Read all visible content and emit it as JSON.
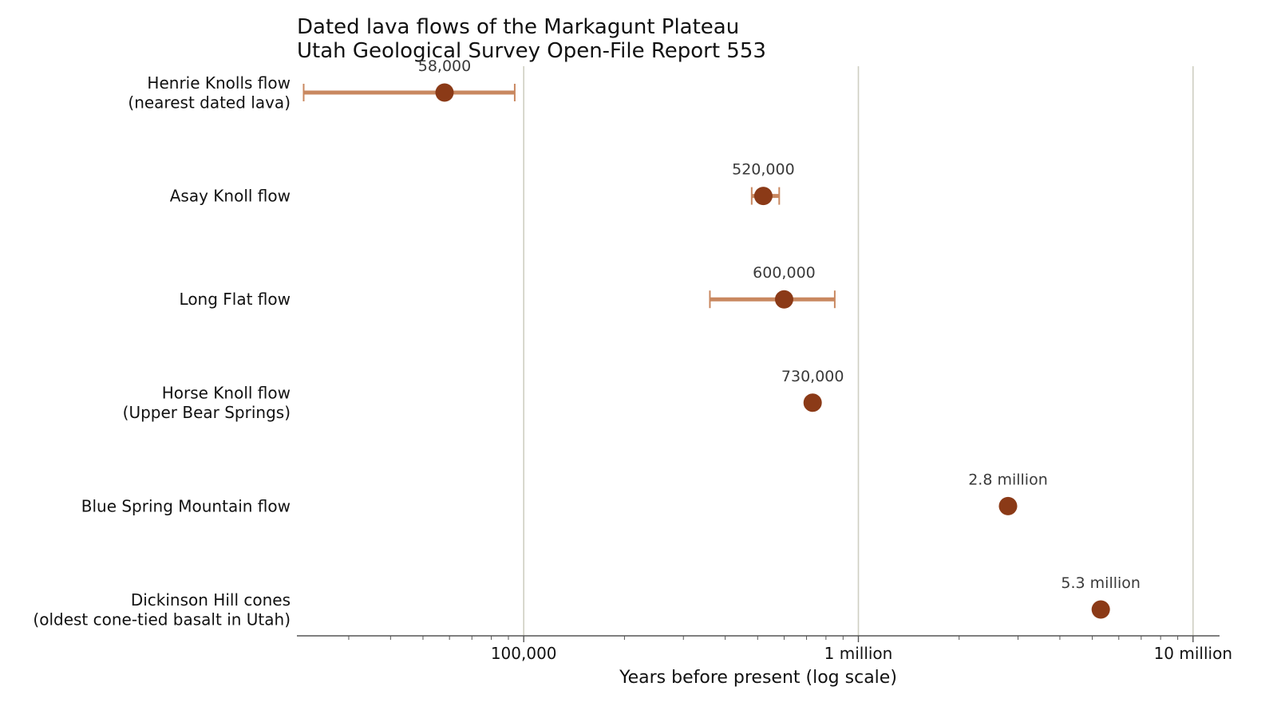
{
  "chart_data": {
    "type": "dot-errorbar",
    "title_lines": [
      "Dated lava flows of the Markagunt Plateau",
      "Utah Geological Survey Open-File Report 553"
    ],
    "xlabel": "Years before present (log scale)",
    "ylabel": "",
    "xscale": "log",
    "xlim": [
      21000,
      12000000
    ],
    "x_ticks": [
      {
        "value": 100000,
        "label": "100,000"
      },
      {
        "value": 1000000,
        "label": "1 million"
      },
      {
        "value": 10000000,
        "label": "10 million"
      }
    ],
    "grid": "vertical lines at major ticks",
    "points": [
      {
        "lines": [
          "Henrie Knolls flow",
          "(nearest dated lava)"
        ],
        "value": 58000,
        "err_low": 22000,
        "err_high": 94000,
        "label": "58,000"
      },
      {
        "lines": [
          "Asay Knoll flow"
        ],
        "value": 520000,
        "err_low": 480000,
        "err_high": 580000,
        "label": "520,000"
      },
      {
        "lines": [
          "Long Flat flow"
        ],
        "value": 600000,
        "err_low": 360000,
        "err_high": 850000,
        "label": "600,000"
      },
      {
        "lines": [
          "Horse Knoll flow",
          "(Upper Bear Springs)"
        ],
        "value": 730000,
        "err_low": 720000,
        "err_high": 740000,
        "label": "730,000"
      },
      {
        "lines": [
          "Blue Spring Mountain flow"
        ],
        "value": 2800000,
        "label": "2.8 million"
      },
      {
        "lines": [
          "Dickinson Hill cones",
          "(oldest cone-tied basalt in Utah)"
        ],
        "value": 5300000,
        "label": "5.3 million"
      }
    ],
    "colors": {
      "point": "#8b3a17",
      "errorbar": "#c98860",
      "grid": "#cfcfc2",
      "axis": "#555555",
      "text": "#111111",
      "data_label": "#3a3a3a"
    }
  }
}
